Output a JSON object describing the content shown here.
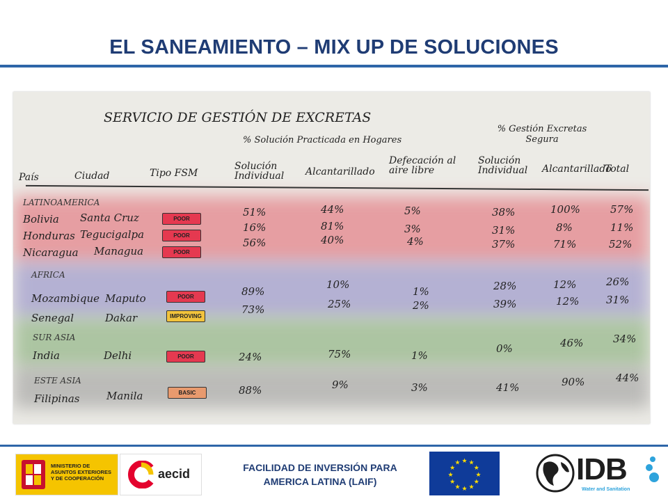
{
  "title": "EL SANEAMIENTO – MIX UP DE SOLUCIONES",
  "sketch": {
    "heading": "SERVICIO DE GESTIÓN DE EXCRETAS",
    "subheading_left": "% Solución Practicada en Hogares",
    "subheading_right": "% Gestión Excretas Segura",
    "columns": [
      "País",
      "Ciudad",
      "Tipo FSM",
      "Solución Individual",
      "Alcantarillado",
      "Defecación al aire libre",
      "Solución Individual",
      "Alcantarillado",
      "Total"
    ],
    "regions": [
      {
        "name": "LATINOAMERICA",
        "rows": [
          {
            "country": "Bolivia",
            "city": "Santa Cruz",
            "fsm": "POOR",
            "sol_ind": "51%",
            "alc": "44%",
            "def": "5%",
            "g_ind": "38%",
            "g_alc": "100%",
            "total": "57%"
          },
          {
            "country": "Honduras",
            "city": "Tegucigalpa",
            "fsm": "POOR",
            "sol_ind": "16%",
            "alc": "81%",
            "def": "3%",
            "g_ind": "31%",
            "g_alc": "8%",
            "total": "11%"
          },
          {
            "country": "Nicaragua",
            "city": "Managua",
            "fsm": "POOR",
            "sol_ind": "56%",
            "alc": "40%",
            "def": "4%",
            "g_ind": "37%",
            "g_alc": "71%",
            "total": "52%"
          }
        ]
      },
      {
        "name": "AFRICA",
        "rows": [
          {
            "country": "Mozambique",
            "city": "Maputo",
            "fsm": "POOR",
            "sol_ind": "89%",
            "alc": "10%",
            "def": "1%",
            "g_ind": "28%",
            "g_alc": "12%",
            "total": "26%"
          },
          {
            "country": "Senegal",
            "city": "Dakar",
            "fsm": "IMPROVING",
            "sol_ind": "73%",
            "alc": "25%",
            "def": "2%",
            "g_ind": "39%",
            "g_alc": "12%",
            "total": "31%"
          }
        ]
      },
      {
        "name": "SUR ASIA",
        "rows": [
          {
            "country": "India",
            "city": "Delhi",
            "fsm": "POOR",
            "sol_ind": "24%",
            "alc": "75%",
            "def": "1%",
            "g_ind": "0%",
            "g_alc": "46%",
            "total": "34%"
          }
        ]
      },
      {
        "name": "ESTE ASIA",
        "rows": [
          {
            "country": "Filipinas",
            "city": "Manila",
            "fsm": "BASIC",
            "sol_ind": "88%",
            "alc": "9%",
            "def": "3%",
            "g_ind": "41%",
            "g_alc": "90%",
            "total": "44%"
          }
        ]
      }
    ]
  },
  "footer": {
    "spain_text": "MINISTERIO DE ASUNTOS EXTERIORES Y DE COOPERACIÓN",
    "aecid_text": "aecid",
    "laif_line1": "FACILIDAD DE INVERSIÓN PARA",
    "laif_line2": "AMERICA LATINA (LAIF)",
    "idb_text": "IDB",
    "idb_sub": "Water and Sanitation"
  },
  "colors": {
    "title": "#1f3c74",
    "rule": "#2e66a8",
    "poor": "#e53950",
    "improving": "#f2c33c",
    "basic": "#e89a6e"
  }
}
